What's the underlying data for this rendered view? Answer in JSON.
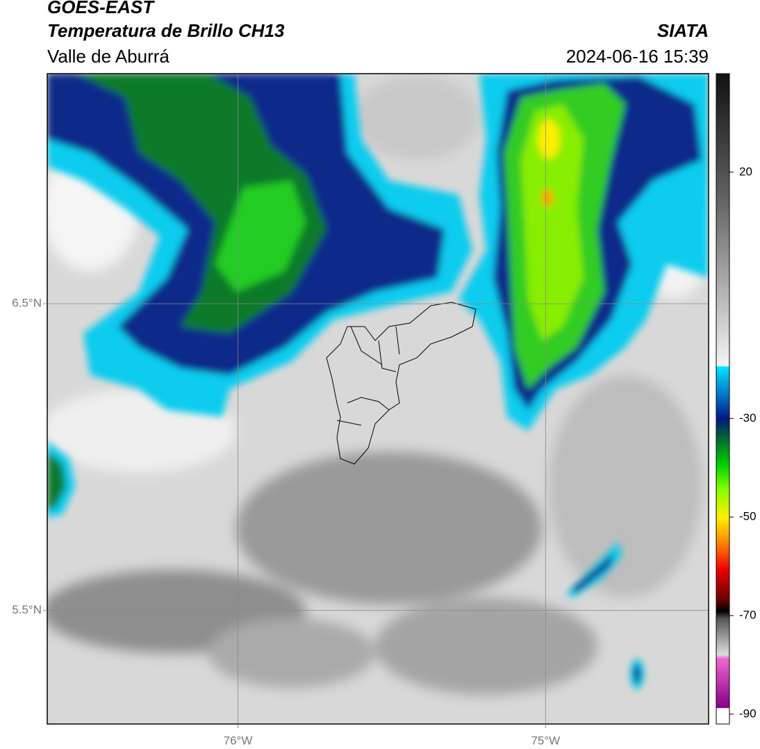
{
  "header": {
    "satellite": "GOES-EAST",
    "product": "Temperatura de Brillo CH13",
    "region": "Valle de Aburrá",
    "source": "SIATA",
    "timestamp": "2024-06-16 15:39"
  },
  "map": {
    "xlim": [
      -76.62,
      -74.47
    ],
    "ylim": [
      5.13,
      7.25
    ],
    "xticks": [
      {
        "value": -76,
        "label": "76°W"
      },
      {
        "value": -75,
        "label": "75°W"
      }
    ],
    "yticks": [
      {
        "value": 6.5,
        "label": "6.5°N"
      },
      {
        "value": 5.5,
        "label": "5.5°N"
      }
    ],
    "grid": true
  },
  "colorbar": {
    "lim": [
      -92,
      40
    ],
    "ticks": [
      20,
      -30,
      -50,
      -70,
      -90
    ]
  }
}
